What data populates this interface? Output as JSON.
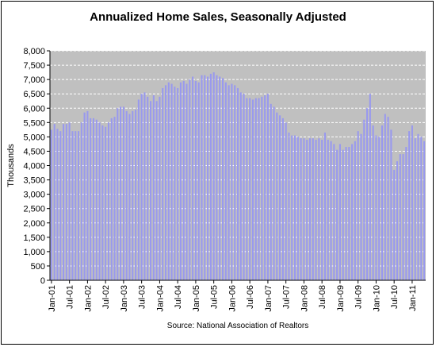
{
  "chart_data": {
    "type": "bar",
    "title": "Annualized Home Sales, Seasonally Adjusted",
    "ylabel": "Thousands",
    "xlabel": "",
    "source": "Source: National Association of Realtors",
    "ylim": [
      0,
      8000
    ],
    "yticks": [
      0,
      500,
      1000,
      1500,
      2000,
      2500,
      3000,
      3500,
      4000,
      4500,
      5000,
      5500,
      6000,
      6500,
      7000,
      7500,
      8000
    ],
    "ytick_labels": [
      "0",
      "500",
      "1,000",
      "1,500",
      "2,000",
      "2,500",
      "3,000",
      "3,500",
      "4,000",
      "4,500",
      "5,000",
      "5,500",
      "6,000",
      "6,500",
      "7,000",
      "7,500",
      "8,000"
    ],
    "xtick_labels": [
      "Jan-01",
      "Jul-01",
      "Jan-02",
      "Jul-02",
      "Jan-03",
      "Jul-03",
      "Jan-04",
      "Jul-04",
      "Jan-05",
      "Jul-05",
      "Jan-06",
      "Jul-06",
      "Jan-07",
      "Jul-07",
      "Jan-08",
      "Jul-08",
      "Jan-09",
      "Jul-09",
      "Jan-10",
      "Jul-10",
      "Jan-11"
    ],
    "grid": true,
    "colors": {
      "bar": "#9999ee",
      "plot_bg": "#c0c0c0",
      "grid": "#ffffff"
    },
    "series": [
      {
        "values": [
          5250,
          5450,
          5280,
          5200,
          5450,
          5450,
          5500,
          5200,
          5200,
          5200,
          5500,
          5850,
          5900,
          5650,
          5650,
          5600,
          5500,
          5400,
          5350,
          5500,
          5650,
          5700,
          6000,
          6050,
          6050,
          5900,
          5800,
          5900,
          5950,
          6300,
          6500,
          6550,
          6400,
          6250,
          6450,
          6250,
          6400,
          6700,
          6800,
          6900,
          6850,
          6750,
          6700,
          6900,
          6950,
          6850,
          7000,
          7100,
          6950,
          6900,
          7150,
          7150,
          7100,
          7200,
          7250,
          7150,
          7100,
          7050,
          6900,
          6800,
          6850,
          6800,
          6700,
          6550,
          6500,
          6350,
          6350,
          6300,
          6350,
          6350,
          6400,
          6450,
          6500,
          6150,
          6050,
          5850,
          5750,
          5650,
          5500,
          5150,
          5050,
          5050,
          5000,
          4950,
          4950,
          4900,
          4950,
          4950,
          4900,
          4950,
          4900,
          5150,
          4900,
          4850,
          4750,
          4550,
          4750,
          4550,
          4650,
          4650,
          4750,
          4850,
          5200,
          5100,
          5600,
          6000,
          6500,
          5400,
          5050,
          5000,
          5400,
          5800,
          5700,
          5250,
          3850,
          4150,
          4400,
          4400,
          4650,
          5200,
          5400,
          4950,
          5100,
          5000,
          4850
        ]
      }
    ]
  }
}
